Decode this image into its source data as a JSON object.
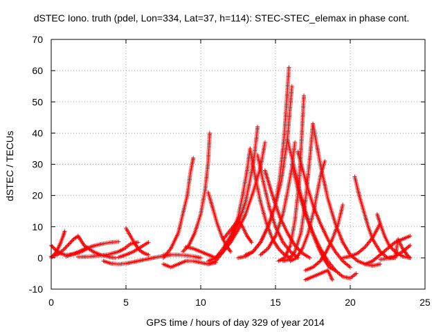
{
  "chart_data": {
    "type": "scatter",
    "title": "dSTEC Iono. truth (pdel, Lon=334, Lat=37, h=114): STEC-STEC_elemax in phase cont.",
    "xlabel": "GPS time / hours of day 329 of year 2014",
    "ylabel": "dSTEC  / TECUs",
    "xlim": [
      0,
      25
    ],
    "ylim": [
      -10,
      70
    ],
    "xticks": [
      "0",
      "5",
      "10",
      "15",
      "20",
      "25"
    ],
    "yticks": [
      "-10",
      "0",
      "10",
      "20",
      "30",
      "40",
      "50",
      "60",
      "70"
    ],
    "grid": true,
    "marker": "+",
    "color": "#ff0000",
    "arcs": [
      {
        "x": [
          0.0,
          0.3,
          0.6,
          0.9,
          1.2,
          1.5,
          1.8,
          2.1,
          2.4
        ],
        "y": [
          4,
          2.5,
          1.5,
          1,
          1,
          1.2,
          1.6,
          2.2,
          3
        ]
      },
      {
        "x": [
          0.0,
          0.2,
          0.4,
          0.6,
          0.8,
          0.9
        ],
        "y": [
          0,
          1,
          2.5,
          4.5,
          7,
          8.5
        ]
      },
      {
        "x": [
          0.0,
          0.4,
          0.8,
          1.2,
          1.5,
          1.8
        ],
        "y": [
          0.5,
          1,
          2.5,
          4.5,
          6,
          7
        ]
      },
      {
        "x": [
          1.8,
          2.2,
          2.8,
          3.4,
          4.0,
          4.3
        ],
        "y": [
          7,
          4,
          2,
          0.8,
          0.2,
          0
        ]
      },
      {
        "x": [
          1.0,
          1.6,
          2.2,
          2.8,
          3.4,
          4.0,
          4.5
        ],
        "y": [
          0.5,
          1.5,
          2.8,
          3.8,
          4.5,
          5,
          5.2
        ]
      },
      {
        "x": [
          1.8,
          2.5,
          3.2,
          3.9,
          4.5,
          4.9,
          5.3,
          5.8
        ],
        "y": [
          0.3,
          0.4,
          0.7,
          1.2,
          2,
          3,
          4.5,
          5
        ]
      },
      {
        "x": [
          4.5,
          5.0,
          5.5,
          6.0,
          6.5
        ],
        "y": [
          0.2,
          1,
          2,
          3.5,
          5
        ]
      },
      {
        "x": [
          5.0,
          5.3,
          5.6,
          5.9,
          6.2,
          6.5
        ],
        "y": [
          9.5,
          7,
          4.5,
          2.5,
          1.5,
          1
        ]
      },
      {
        "x": [
          3.5,
          4.0,
          4.5,
          5.0,
          5.5,
          6.0,
          6.5,
          7.0,
          7.5,
          8.0
        ],
        "y": [
          -1,
          -1.8,
          -2,
          -1.8,
          -1.3,
          -0.8,
          -0.3,
          0.2,
          0.6,
          1
        ]
      },
      {
        "x": [
          7.5,
          8.0,
          8.5,
          9.0,
          9.5,
          10.0
        ],
        "y": [
          1,
          1,
          1,
          0.8,
          0.5,
          0
        ]
      },
      {
        "x": [
          7.5,
          8.0,
          8.5,
          9.0,
          9.5,
          10.0,
          10.5,
          11.0
        ],
        "y": [
          -2,
          -3,
          -2,
          -1,
          -1,
          -1.5,
          -2,
          -1.5
        ]
      },
      {
        "x": [
          7.5,
          8.0,
          8.5,
          8.8,
          9.1,
          9.3,
          9.5
        ],
        "y": [
          0,
          3,
          8,
          14,
          20,
          27,
          32
        ]
      },
      {
        "x": [
          8.8,
          9.2,
          9.6,
          10.0,
          10.3,
          10.5,
          10.6
        ],
        "y": [
          2,
          4,
          8,
          14,
          22,
          31,
          40
        ]
      },
      {
        "x": [
          9.0,
          9.5,
          10.0,
          10.5,
          11.0
        ],
        "y": [
          3.5,
          3,
          2,
          1,
          0
        ]
      },
      {
        "x": [
          10.5,
          10.8,
          11.1,
          11.4,
          11.7,
          12.0
        ],
        "y": [
          21,
          16,
          11,
          7,
          4,
          2
        ]
      },
      {
        "x": [
          10.5,
          11.0,
          11.5,
          12.0,
          12.5,
          12.8,
          13.1,
          13.3
        ],
        "y": [
          -1,
          0,
          3,
          7,
          13,
          20,
          28,
          35
        ]
      },
      {
        "x": [
          10.5,
          11.0,
          11.5,
          12.0,
          12.5,
          13.0,
          13.3,
          13.6,
          13.8
        ],
        "y": [
          -2,
          -1,
          2,
          6,
          11,
          18,
          25,
          33,
          42
        ]
      },
      {
        "x": [
          11.0,
          11.5,
          12.0,
          12.5,
          13.0,
          13.5,
          14.0,
          14.3
        ],
        "y": [
          0,
          2,
          5,
          9,
          14,
          21,
          29,
          37
        ]
      },
      {
        "x": [
          11.5,
          12.0,
          12.5,
          12.8,
          13.1,
          13.4
        ],
        "y": [
          6,
          9,
          12,
          10,
          7,
          5
        ]
      },
      {
        "x": [
          13.3,
          13.6,
          14.0,
          14.4,
          14.8,
          15.2,
          15.6,
          16.0
        ],
        "y": [
          35,
          27,
          18,
          11,
          6,
          3,
          1,
          0
        ]
      },
      {
        "x": [
          13.8,
          14.2,
          14.6,
          15.0,
          15.5,
          16.0,
          16.5
        ],
        "y": [
          33,
          24,
          16,
          10,
          5,
          2,
          0
        ]
      },
      {
        "x": [
          14.3,
          14.8,
          15.3,
          15.8,
          16.3,
          16.8,
          17.3
        ],
        "y": [
          28,
          20,
          13,
          8,
          4,
          1.5,
          0
        ]
      },
      {
        "x": [
          12.5,
          13.0,
          13.5,
          14.0,
          14.5,
          15.0,
          15.3,
          15.6,
          15.9
        ],
        "y": [
          0,
          0.5,
          2,
          5,
          10,
          17,
          26,
          40,
          61
        ]
      },
      {
        "x": [
          13.0,
          13.5,
          14.0,
          14.5,
          15.0,
          15.4,
          15.8,
          16.1
        ],
        "y": [
          1,
          2,
          5,
          10,
          17,
          25,
          38,
          55
        ]
      },
      {
        "x": [
          14.0,
          14.5,
          15.0,
          15.5,
          15.8,
          16.1,
          16.3
        ],
        "y": [
          1,
          3,
          7,
          14,
          21,
          29,
          37
        ]
      },
      {
        "x": [
          15.2,
          15.6,
          16.0,
          16.3,
          16.6,
          16.9
        ],
        "y": [
          -1,
          0,
          4,
          12,
          25,
          52
        ]
      },
      {
        "x": [
          15.5,
          15.9,
          16.3,
          16.7,
          17.0,
          17.3,
          17.5
        ],
        "y": [
          -1,
          -0.5,
          2,
          8,
          18,
          32,
          43
        ]
      },
      {
        "x": [
          16.0,
          16.4,
          16.8,
          17.2,
          17.6,
          18.0,
          18.3
        ],
        "y": [
          -1,
          0,
          3,
          8,
          16,
          26,
          31
        ]
      },
      {
        "x": [
          15.8,
          16.2,
          16.6,
          17.0,
          17.4,
          17.8,
          18.2,
          18.6,
          19.0
        ],
        "y": [
          38,
          30,
          22,
          15,
          9,
          4,
          0,
          -3,
          -4
        ]
      },
      {
        "x": [
          16.1,
          16.5,
          17.0,
          17.5,
          18.0,
          18.5,
          19.0,
          19.5,
          20.0,
          20.4
        ],
        "y": [
          30,
          22,
          14,
          8,
          3,
          -1,
          -4,
          -6,
          -6.5,
          -5
        ]
      },
      {
        "x": [
          16.5,
          17.0,
          17.5,
          18.0,
          18.5,
          19.0,
          19.5,
          20.0
        ],
        "y": [
          34,
          25,
          17,
          11,
          6,
          2,
          -1,
          -3
        ]
      },
      {
        "x": [
          17.5,
          18.0,
          18.5,
          19.0,
          19.5,
          20.0,
          20.5,
          21.0,
          21.5,
          22.0
        ],
        "y": [
          43,
          30,
          19,
          11,
          5,
          1,
          -1,
          -2,
          -2.5,
          -2
        ]
      },
      {
        "x": [
          17.0,
          17.5,
          18.0,
          18.5,
          18.8
        ],
        "y": [
          -7,
          -6,
          -5,
          -4,
          -7
        ]
      },
      {
        "x": [
          17.0,
          17.5,
          18.0,
          18.4,
          18.8,
          19.2,
          19.5
        ],
        "y": [
          -4,
          -3,
          -1,
          2,
          6,
          11,
          17
        ]
      },
      {
        "x": [
          20.3,
          20.6,
          20.9,
          21.2,
          21.5,
          22.0,
          22.5,
          23.0
        ],
        "y": [
          26,
          20,
          15,
          10,
          6,
          2,
          0,
          0
        ]
      },
      {
        "x": [
          19.5,
          20.0,
          20.5,
          21.0,
          21.5,
          22.0
        ],
        "y": [
          0,
          0.5,
          1.5,
          3.5,
          6.5,
          11
        ]
      },
      {
        "x": [
          21.0,
          21.5,
          22.0,
          22.5,
          23.0,
          23.5,
          24.0
        ],
        "y": [
          -2,
          -1,
          1,
          3,
          5,
          6,
          7
        ]
      },
      {
        "x": [
          21.8,
          22.0,
          22.3,
          22.6,
          23.0,
          23.5,
          24.0
        ],
        "y": [
          14,
          11,
          7,
          4,
          2,
          0.5,
          0
        ]
      },
      {
        "x": [
          22.0,
          22.5,
          23.0,
          23.2,
          23.5,
          23.8,
          24.0
        ],
        "y": [
          -0.5,
          -0.2,
          0,
          6,
          3,
          1,
          0
        ]
      },
      {
        "x": [
          22.5,
          23.0,
          23.5,
          24.0
        ],
        "y": [
          0,
          0.5,
          2,
          4
        ]
      }
    ]
  }
}
